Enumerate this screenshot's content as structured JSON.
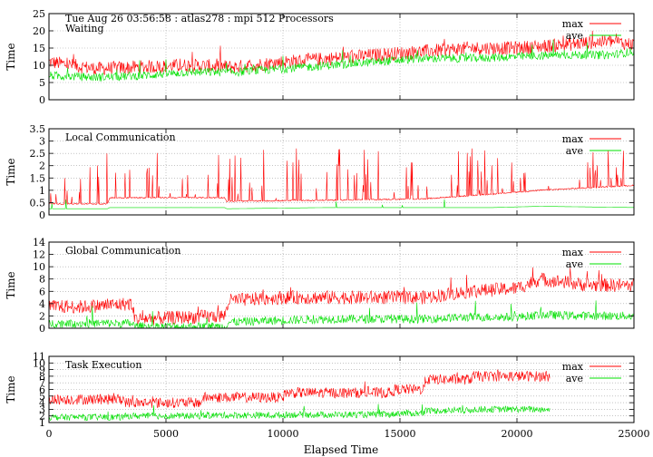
{
  "figure": {
    "header": "Tue Aug 26 03:56:58 : atlas278 : mpi 512 Processors",
    "xlabel": "Elapsed Time",
    "xlim": [
      0,
      25000
    ],
    "xticks": [
      0,
      5000,
      10000,
      15000,
      20000,
      25000
    ],
    "colors": {
      "max": "#ff0000",
      "ave": "#00e000",
      "grid": "#a0a0a0"
    }
  },
  "chart_data": [
    {
      "type": "line",
      "title": "Waiting",
      "ylabel": "Time",
      "ylim": [
        0,
        25
      ],
      "yticks": [
        0,
        5,
        10,
        15,
        20,
        25
      ],
      "grid": "horizontal dotted",
      "legend": "top-right",
      "x": [
        0,
        2000,
        4000,
        6000,
        8000,
        10000,
        12000,
        14000,
        16000,
        18000,
        20000,
        22000,
        24000,
        25000
      ],
      "series": [
        {
          "name": "max",
          "values": [
            11,
            9,
            9.5,
            10,
            9.5,
            11,
            12,
            13,
            14,
            15,
            15,
            16,
            17,
            16
          ]
        },
        {
          "name": "ave",
          "values": [
            7,
            6.5,
            7,
            8,
            8,
            9,
            10,
            11,
            12,
            12,
            12.5,
            13,
            13,
            14
          ]
        }
      ]
    },
    {
      "type": "line",
      "title": "Local Communication",
      "ylabel": "Time",
      "ylim": [
        0,
        3.5
      ],
      "yticks": [
        0,
        0.5,
        1,
        1.5,
        2,
        2.5,
        3,
        3.5
      ],
      "grid": "horizontal dotted",
      "legend": "top-right",
      "x": [
        0,
        2500,
        2600,
        7500,
        7600,
        12000,
        16000,
        19000,
        21000,
        25000
      ],
      "series": [
        {
          "name": "max",
          "values": [
            0.45,
            0.45,
            0.7,
            0.7,
            0.55,
            0.6,
            0.65,
            0.85,
            1.0,
            1.2
          ]
        },
        {
          "name": "ave",
          "values": [
            0.25,
            0.25,
            0.3,
            0.3,
            0.25,
            0.3,
            0.3,
            0.3,
            0.35,
            0.3
          ]
        }
      ]
    },
    {
      "type": "line",
      "title": "Global Communication",
      "ylabel": "Time",
      "ylim": [
        0,
        14
      ],
      "yticks": [
        0,
        2,
        4,
        6,
        8,
        10,
        12,
        14
      ],
      "grid": "horizontal dotted",
      "legend": "top-right",
      "x": [
        0,
        1500,
        3500,
        3700,
        7500,
        7700,
        10000,
        12000,
        14000,
        16000,
        18000,
        20000,
        21000,
        23000,
        25000
      ],
      "series": [
        {
          "name": "max",
          "values": [
            3.5,
            3.5,
            4,
            1.5,
            2,
            4.5,
            5,
            5,
            5,
            5,
            6,
            6.5,
            8,
            7,
            7
          ]
        },
        {
          "name": "ave",
          "values": [
            0.8,
            0.8,
            0.8,
            0.3,
            0.3,
            1,
            1.3,
            1.5,
            1.5,
            1.5,
            1.8,
            1.8,
            2.2,
            2,
            2
          ]
        }
      ]
    },
    {
      "type": "line",
      "title": "Task Execution",
      "ylabel": "Time",
      "ylim": [
        1,
        11
      ],
      "yticks": [
        1,
        2,
        3,
        4,
        5,
        6,
        7,
        8,
        9,
        10,
        11
      ],
      "grid": "horizontal dotted",
      "legend": "top-right",
      "x": [
        0,
        3200,
        3300,
        6500,
        6600,
        10000,
        10100,
        14700,
        14800,
        16000,
        16100,
        18000,
        18100,
        21400
      ],
      "series": [
        {
          "name": "max",
          "values": [
            4.5,
            4.5,
            4.0,
            4.0,
            4.8,
            4.8,
            5.5,
            5.5,
            6.0,
            6.0,
            7.5,
            7.5,
            8.0,
            8.0
          ]
        },
        {
          "name": "ave",
          "values": [
            1.8,
            1.8,
            2.0,
            2.0,
            2.1,
            2.1,
            2.2,
            2.2,
            2.4,
            2.4,
            2.8,
            2.8,
            3.0,
            3.0
          ]
        }
      ]
    }
  ]
}
